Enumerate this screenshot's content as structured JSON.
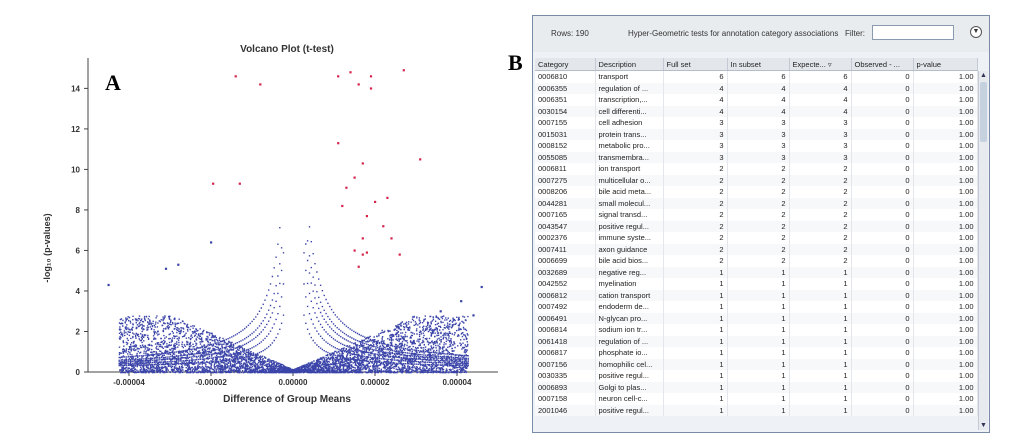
{
  "panel_a_letter": "A",
  "panel_b_letter": "B",
  "chart_data": {
    "type": "scatter",
    "title": "Volcano Plot (t-test)",
    "xlabel": "Difference of Group Means",
    "ylabel": "-log₁₀ (p-values)",
    "xlim": [
      -5e-05,
      5e-05
    ],
    "ylim": [
      0,
      15.5
    ],
    "x_ticks": [
      "-0.00004",
      "-0.00002",
      "0.00000",
      "0.00002",
      "0.00004"
    ],
    "x_tick_values": [
      -4e-05,
      -2e-05,
      0,
      2e-05,
      4e-05
    ],
    "y_ticks": [
      "0",
      "2",
      "4",
      "6",
      "8",
      "10",
      "12",
      "14"
    ],
    "y_tick_values": [
      0,
      2,
      4,
      6,
      8,
      10,
      12,
      14
    ],
    "grid": false,
    "colors": {
      "blue": "#3b44a8",
      "red": "#d6234a"
    },
    "series": [
      {
        "color": "blue",
        "points": [
          [
            -4.5e-05,
            4.3
          ],
          [
            -3.1e-05,
            5.1
          ],
          [
            -2.8e-05,
            5.3
          ],
          [
            -2e-05,
            6.4
          ],
          [
            4.6e-05,
            4.2
          ],
          [
            4.1e-05,
            3.5
          ],
          [
            3.6e-05,
            3.0
          ],
          [
            4.4e-05,
            2.8
          ]
        ]
      },
      {
        "color": "red",
        "points": [
          [
            -1.4e-05,
            14.6
          ],
          [
            -8e-06,
            14.2
          ],
          [
            1.1e-05,
            14.6
          ],
          [
            1.4e-05,
            14.8
          ],
          [
            1.6e-05,
            14.2
          ],
          [
            1.9e-05,
            14.0
          ],
          [
            2.7e-05,
            14.9
          ],
          [
            1.9e-05,
            14.6
          ],
          [
            1.1e-05,
            11.3
          ],
          [
            3.1e-05,
            10.5
          ],
          [
            -1.95e-05,
            9.3
          ],
          [
            -1.3e-05,
            9.3
          ],
          [
            1.7e-05,
            10.3
          ],
          [
            1.3e-05,
            9.1
          ],
          [
            1.5e-05,
            9.6
          ],
          [
            2.3e-05,
            8.6
          ],
          [
            1.2e-05,
            8.2
          ],
          [
            1.8e-05,
            7.7
          ],
          [
            2e-05,
            8.4
          ],
          [
            2.2e-05,
            7.2
          ],
          [
            2.4e-05,
            6.6
          ],
          [
            1.5e-05,
            6.0
          ],
          [
            1.6e-05,
            5.2
          ],
          [
            1.7e-05,
            5.8
          ],
          [
            1.8e-05,
            5.9
          ],
          [
            2.6e-05,
            5.8
          ],
          [
            1.7e-05,
            6.6
          ]
        ]
      }
    ]
  },
  "table_panel": {
    "rows_label": "Rows: 190",
    "description": "Hyper-Geometric tests for annotation category associations",
    "filter_label": "Filter:",
    "filter_value": "",
    "menu_icon": "▼",
    "scroll_up": "▲",
    "scroll_down": "▼",
    "columns": [
      "Category",
      "Description",
      "Full set",
      "In subset",
      "Expecte... ▿",
      "Observed - ...",
      "p-value"
    ],
    "rows": [
      [
        "0006810",
        "transport",
        "6",
        "6",
        "6",
        "0",
        "1.00"
      ],
      [
        "0006355",
        "regulation of ...",
        "4",
        "4",
        "4",
        "0",
        "1.00"
      ],
      [
        "0006351",
        "transcription,...",
        "4",
        "4",
        "4",
        "0",
        "1.00"
      ],
      [
        "0030154",
        "cell differenti...",
        "4",
        "4",
        "4",
        "0",
        "1.00"
      ],
      [
        "0007155",
        "cell adhesion",
        "3",
        "3",
        "3",
        "0",
        "1.00"
      ],
      [
        "0015031",
        "protein trans...",
        "3",
        "3",
        "3",
        "0",
        "1.00"
      ],
      [
        "0008152",
        "metabolic pro...",
        "3",
        "3",
        "3",
        "0",
        "1.00"
      ],
      [
        "0055085",
        "transmembra...",
        "3",
        "3",
        "3",
        "0",
        "1.00"
      ],
      [
        "0006811",
        "ion transport",
        "2",
        "2",
        "2",
        "0",
        "1.00"
      ],
      [
        "0007275",
        "multicellular o...",
        "2",
        "2",
        "2",
        "0",
        "1.00"
      ],
      [
        "0008206",
        "bile acid meta...",
        "2",
        "2",
        "2",
        "0",
        "1.00"
      ],
      [
        "0044281",
        "small molecul...",
        "2",
        "2",
        "2",
        "0",
        "1.00"
      ],
      [
        "0007165",
        "signal transd...",
        "2",
        "2",
        "2",
        "0",
        "1.00"
      ],
      [
        "0043547",
        "positive regul...",
        "2",
        "2",
        "2",
        "0",
        "1.00"
      ],
      [
        "0002376",
        "immune syste...",
        "2",
        "2",
        "2",
        "0",
        "1.00"
      ],
      [
        "0007411",
        "axon guidance",
        "2",
        "2",
        "2",
        "0",
        "1.00"
      ],
      [
        "0006699",
        "bile acid bios...",
        "2",
        "2",
        "2",
        "0",
        "1.00"
      ],
      [
        "0032689",
        "negative reg...",
        "1",
        "1",
        "1",
        "0",
        "1.00"
      ],
      [
        "0042552",
        "myelination",
        "1",
        "1",
        "1",
        "0",
        "1.00"
      ],
      [
        "0006812",
        "cation transport",
        "1",
        "1",
        "1",
        "0",
        "1.00"
      ],
      [
        "0007492",
        "endoderm de...",
        "1",
        "1",
        "1",
        "0",
        "1.00"
      ],
      [
        "0006491",
        "N-glycan pro...",
        "1",
        "1",
        "1",
        "0",
        "1.00"
      ],
      [
        "0006814",
        "sodium ion tr...",
        "1",
        "1",
        "1",
        "0",
        "1.00"
      ],
      [
        "0061418",
        "regulation of ...",
        "1",
        "1",
        "1",
        "0",
        "1.00"
      ],
      [
        "0006817",
        "phosphate io...",
        "1",
        "1",
        "1",
        "0",
        "1.00"
      ],
      [
        "0007156",
        "homophilic cel...",
        "1",
        "1",
        "1",
        "0",
        "1.00"
      ],
      [
        "0030335",
        "positive regul...",
        "1",
        "1",
        "1",
        "0",
        "1.00"
      ],
      [
        "0006893",
        "Golgi to plas...",
        "1",
        "1",
        "1",
        "0",
        "1.00"
      ],
      [
        "0007158",
        "neuron cell-c...",
        "1",
        "1",
        "1",
        "0",
        "1.00"
      ],
      [
        "2001046",
        "positive regul...",
        "1",
        "1",
        "1",
        "0",
        "1.00"
      ]
    ]
  }
}
